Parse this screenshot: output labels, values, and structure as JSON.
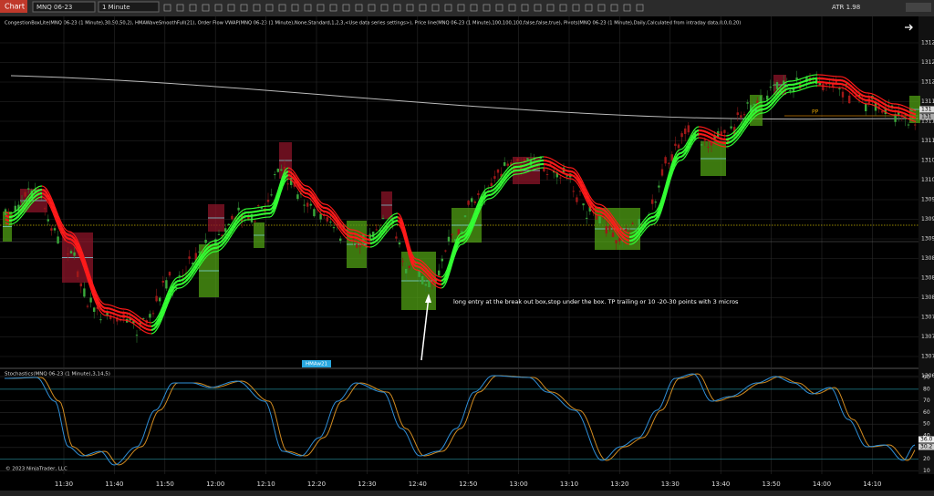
{
  "toolbar": {
    "tab": "Chart",
    "instrument": "MNQ 06-23",
    "interval": "1 Minute",
    "atr": "ATR 1.98"
  },
  "chart": {
    "indicators": "CongestionBoxLite(MNQ 06-23 (1 Minute),30,50,50,2), HMAWaveSmoothFull(21), Order Flow VWAP(MNQ 06-23 (1 Minute),None,Standard,1,2,3,<Use data series settings>), Price line(MNQ 06-23 (1 Minute),100,100,100,false,false,true), Pivots(MNQ 06-23 (1 Minute),Daily,Calculated from intraday data,0,0,0,20)",
    "annotation": "long entry at the break out box,stop under the box. TP trailing or 10 -20-30 points with 3 micros",
    "hma_label": "HMAw21",
    "pivot_label": "PP",
    "price_axis": [
      "1312",
      "1312",
      "1312",
      "1311",
      "1311",
      "1311",
      "1310",
      "1310",
      "1309",
      "1309",
      "1309",
      "1308",
      "1308",
      "1308",
      "1307",
      "1307",
      "1307",
      "1306"
    ],
    "price_markers": [
      "131",
      "131"
    ]
  },
  "stochastics": {
    "title": "Stochastics(MNQ 06-23 (1 Minute),3,14,5)",
    "axis": [
      "90",
      "80",
      "70",
      "60",
      "50",
      "40",
      "30",
      "20",
      "10"
    ],
    "value_labels": [
      "36.0",
      "30.2"
    ]
  },
  "time_axis": [
    "11:30",
    "11:40",
    "11:50",
    "12:00",
    "12:10",
    "12:20",
    "12:30",
    "12:40",
    "12:50",
    "13:00",
    "13:10",
    "13:20",
    "13:30",
    "13:40",
    "13:50",
    "14:00",
    "14:10"
  ],
  "copyright": "© 2023 NinjaTrader, LLC"
}
